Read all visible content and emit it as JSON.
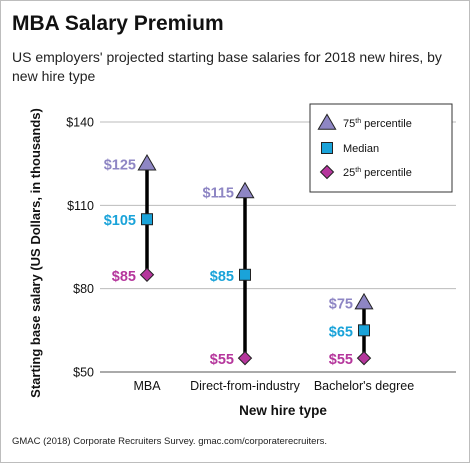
{
  "title": "MBA Salary Premium",
  "subtitle": "US employers' projected starting base salaries for 2018 new hires, by new hire type",
  "source": "GMAC (2018) Corporate Recruiters Survey. gmac.com/corporaterecruiters.",
  "colors": {
    "p75": "#8e86c4",
    "median": "#1aa3d9",
    "p25": "#b5369c",
    "stem": "#000000",
    "grid": "#bbbbbb"
  },
  "chart_data": {
    "type": "scatter",
    "xlabel": "New hire type",
    "ylabel": "Starting base salary (US Dollars, in thousands)",
    "ylim": [
      50,
      140
    ],
    "yticks": [
      50,
      80,
      110,
      140
    ],
    "ytick_labels": [
      "$50",
      "$80",
      "$110",
      "$140"
    ],
    "grid": true,
    "legend": "top-right",
    "categories": [
      "MBA",
      "Direct-from-industry",
      "Bachelor's degree"
    ],
    "series": [
      {
        "name": "75th percentile",
        "marker": "triangle",
        "values": [
          125,
          115,
          75
        ],
        "labels": [
          "$125",
          "$115",
          "$75"
        ]
      },
      {
        "name": "Median",
        "marker": "square",
        "values": [
          105,
          85,
          65
        ],
        "labels": [
          "$105",
          "$85",
          "$65"
        ]
      },
      {
        "name": "25th percentile",
        "marker": "diamond",
        "values": [
          85,
          55,
          55
        ],
        "labels": [
          "$85",
          "$55",
          "$55"
        ]
      }
    ],
    "legend_entries": [
      {
        "prefix": "75",
        "sup": "th",
        "suffix": " percentile"
      },
      {
        "prefix": "Median",
        "sup": "",
        "suffix": ""
      },
      {
        "prefix": "25",
        "sup": "th",
        "suffix": " percentile"
      }
    ]
  }
}
